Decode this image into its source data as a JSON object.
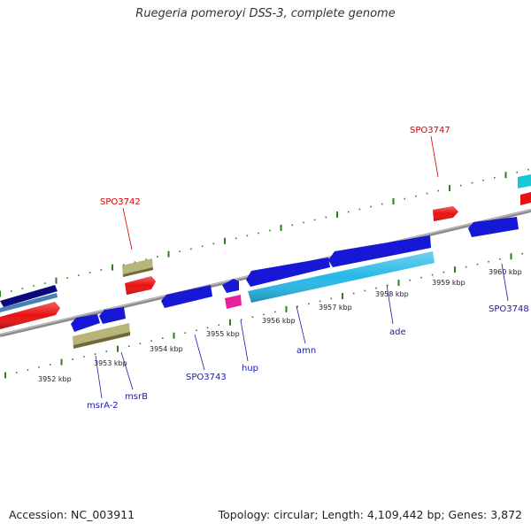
{
  "title": "Ruegeria pomeroyi DSS-3, complete genome",
  "footer": {
    "accession": "Accession: NC_003911",
    "summary": "Topology: circular; Length: 4,109,442 bp; Genes: 3,872"
  },
  "colors": {
    "backbone": "#8c8c8c",
    "tick": "#2e7d1e",
    "red_gene": "#e81010",
    "blue_gene": "#1717d6",
    "cyan_gene": "#27b8e8",
    "navy_gene": "#0a0a7a",
    "steel_gene": "#4a7fb5",
    "tan_gene": "#b9b47a",
    "magenta_gene": "#e8209c",
    "teal_gene": "#18c8d8",
    "red_label": "#d40000",
    "blue_label": "#1a1aa8"
  },
  "scale_labels": [
    "3952 kbp",
    "3953 kbp",
    "3954 kbp",
    "3955 kbp",
    "3956 kbp",
    "3957 kbp",
    "3958 kbp",
    "3959 kbp",
    "3960 kbp"
  ],
  "gene_labels": {
    "top": [
      "SPO3742",
      "SPO3747"
    ],
    "bottom": [
      "msrA-2",
      "msrB",
      "SPO3743",
      "hup",
      "amn",
      "ade",
      "SPO3748"
    ]
  }
}
